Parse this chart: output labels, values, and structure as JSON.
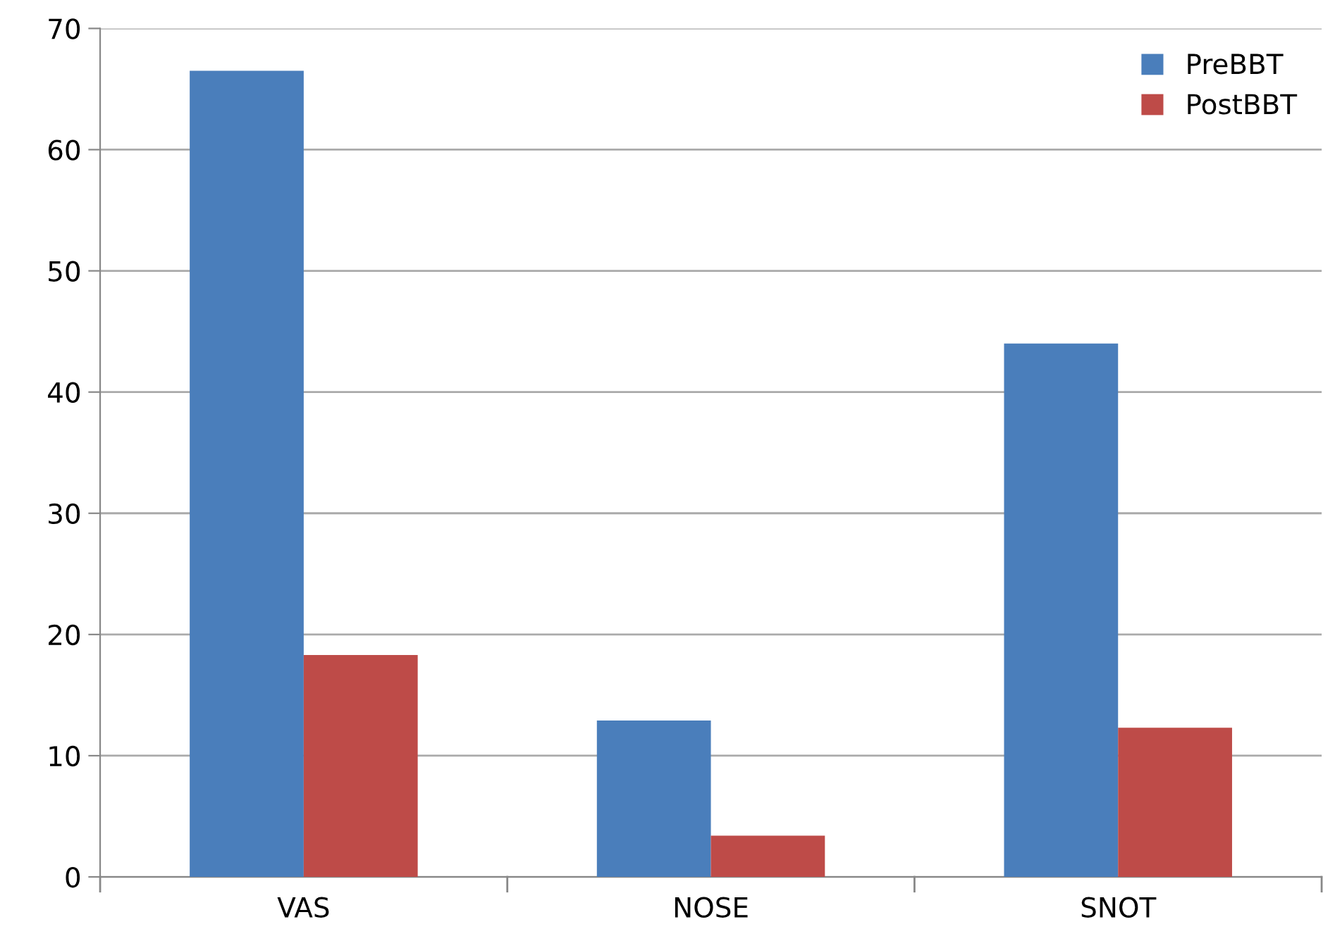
{
  "chart_data": {
    "type": "bar",
    "categories": [
      "VAS",
      "NOSE",
      "SNOT"
    ],
    "series": [
      {
        "name": "PreBBT",
        "color": "#4a7ebb",
        "values": [
          66.5,
          12.9,
          44.0
        ]
      },
      {
        "name": "PostBBT",
        "color": "#be4b48",
        "values": [
          18.3,
          3.4,
          12.3
        ]
      }
    ],
    "ylim": [
      0,
      70
    ],
    "yticks": [
      0,
      10,
      20,
      30,
      40,
      50,
      60,
      70
    ],
    "grid": "y",
    "legend": "top right"
  }
}
